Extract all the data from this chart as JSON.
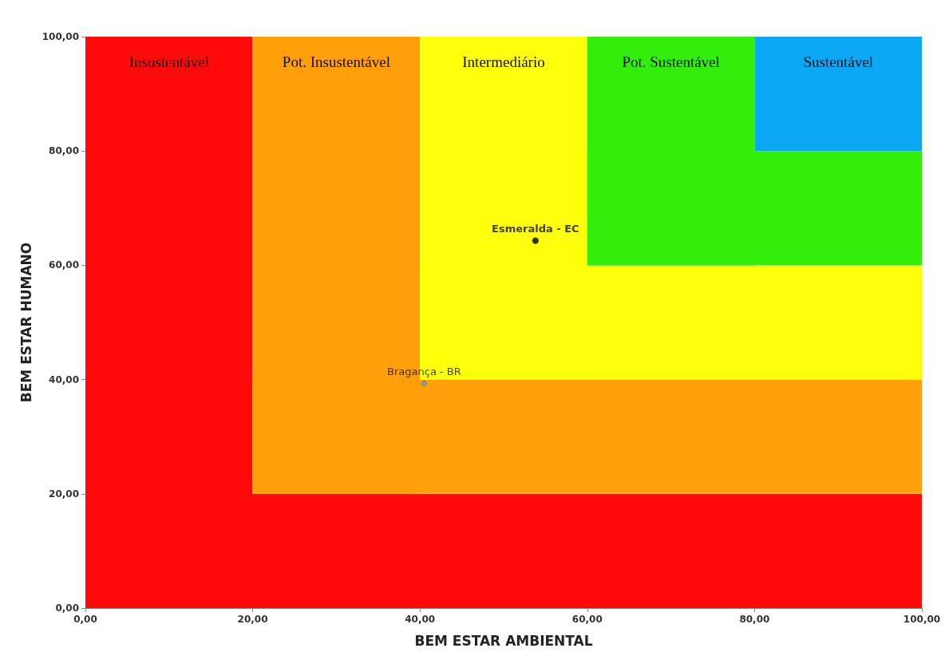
{
  "chart_data": {
    "type": "scatter",
    "xlabel": "BEM ESTAR AMBIENTAL",
    "ylabel": "BEM ESTAR HUMANO",
    "xlim": [
      0,
      100
    ],
    "ylim": [
      0,
      100
    ],
    "xticks": [
      {
        "value": 0,
        "label": "0,00"
      },
      {
        "value": 20,
        "label": "20,00"
      },
      {
        "value": 40,
        "label": "40,00"
      },
      {
        "value": 60,
        "label": "60,00"
      },
      {
        "value": 80,
        "label": "80,00"
      },
      {
        "value": 100,
        "label": "100,00"
      }
    ],
    "yticks": [
      {
        "value": 0,
        "label": "0,00"
      },
      {
        "value": 20,
        "label": "20,00"
      },
      {
        "value": 40,
        "label": "40,00"
      },
      {
        "value": 60,
        "label": "60,00"
      },
      {
        "value": 80,
        "label": "80,00"
      },
      {
        "value": 100,
        "label": "100,00"
      }
    ],
    "grid": false,
    "legend": false,
    "series": [
      {
        "name": "Esmeralda - EC",
        "color": "#000000",
        "marker": "circle",
        "x": [
          53.8
        ],
        "values": [
          64.3
        ]
      },
      {
        "name": "Bragança - BR",
        "color": "#5b9bd5",
        "marker": "diamond",
        "x": [
          40.5
        ],
        "values": [
          39.3
        ]
      }
    ],
    "bands": [
      {
        "axis": "x",
        "from": 0,
        "to": 20,
        "label": "Insustentável",
        "color": "#ff0a0a"
      },
      {
        "axis": "y",
        "from": 0,
        "to": 20,
        "label": null,
        "color": "#ff0a0a"
      },
      {
        "axis": "x",
        "from": 20,
        "to": 40,
        "label": "Pot. Insustentável",
        "color": "#ffa00a"
      },
      {
        "axis": "y",
        "from": 20,
        "to": 40,
        "label": null,
        "color": "#ffa00a"
      },
      {
        "axis": "x",
        "from": 40,
        "to": 60,
        "label": "Intermediário",
        "color": "#ffff0a"
      },
      {
        "axis": "y",
        "from": 40,
        "to": 60,
        "label": null,
        "color": "#ffff0a"
      },
      {
        "axis": "x",
        "from": 60,
        "to": 80,
        "label": "Pot. Sustentável",
        "color": "#33ee0a"
      },
      {
        "axis": "y",
        "from": 60,
        "to": 80,
        "label": null,
        "color": "#33ee0a"
      },
      {
        "axis": "x",
        "from": 80,
        "to": 100,
        "label": "Sustentável",
        "color": "#0aa8f5"
      }
    ]
  }
}
